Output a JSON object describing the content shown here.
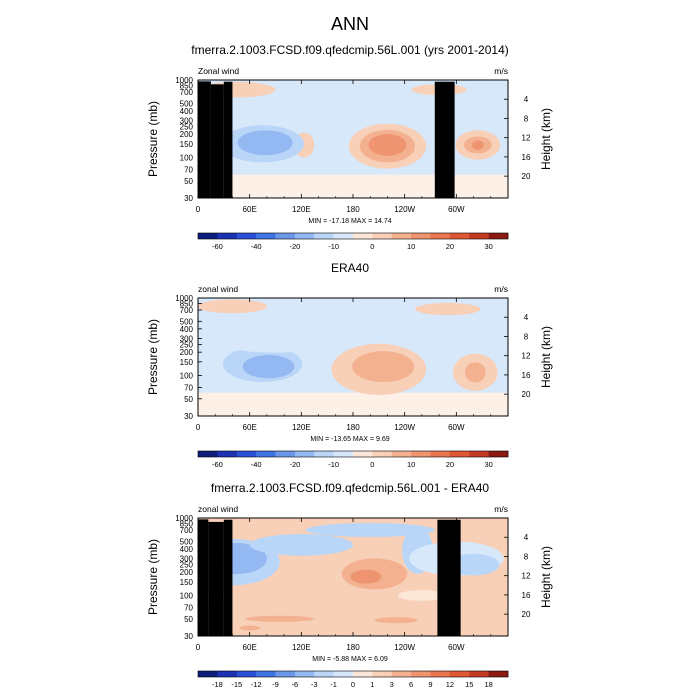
{
  "figure_title": "ANN",
  "colors": {
    "blue_levels": [
      "#0b1e7a",
      "#1b33b0",
      "#2a50d6",
      "#3f74e6",
      "#6c98ea",
      "#93b8f2",
      "#b9d6f8",
      "#d8e8fb"
    ],
    "red_levels": [
      "#fbe6d8",
      "#f8cfb7",
      "#f3b190",
      "#ef9470",
      "#e97551",
      "#df5836",
      "#c43b24",
      "#8b1a12"
    ],
    "neutral": "#fdf1e7",
    "topography": "#000000"
  },
  "chart_data": [
    {
      "type": "contour",
      "title": "fmerra.2.1003.FCSD.f09.qfedcmip.56L.001 (yrs 2001-2014)",
      "left_label": "Zonal wind",
      "right_label": "m/s",
      "ylabel": "Pressure (mb)",
      "y2label": "Height (km)",
      "x_ticks": [
        "0",
        "60E",
        "120E",
        "180",
        "120W",
        "60W"
      ],
      "x_range_deg": [
        0,
        360
      ],
      "p_ticks": [
        30,
        50,
        70,
        100,
        150,
        200,
        250,
        300,
        400,
        500,
        700,
        850,
        1000
      ],
      "p_range": [
        1000,
        30
      ],
      "height_ticks_km": [
        4,
        8,
        12,
        16,
        20
      ],
      "stats": "MIN = -17.18  MAX =  14.74",
      "colorbar_labels": [
        "-60",
        "-40",
        "-20",
        "-10",
        "0",
        "10",
        "20",
        "30"
      ],
      "colorbar_colors": [
        "#0b1e7a",
        "#1b33b0",
        "#2a50d6",
        "#3f74e6",
        "#6c98ea",
        "#93b8f2",
        "#b9d6f8",
        "#d8e8fb",
        "#fbe6d8",
        "#f8cfb7",
        "#f3b190",
        "#ef9470",
        "#e97551",
        "#df5836",
        "#c43b24",
        "#8b1a12"
      ],
      "background": "#fdf1e7",
      "top_band": "#d8e8fb",
      "features": [
        {
          "kind": "blob",
          "lon": 123,
          "p": 145,
          "lon_half_width": 12,
          "p_log_half": 0.16,
          "color": "#f8cfb7",
          "level": 5
        },
        {
          "kind": "blob",
          "lon": 220,
          "p": 140,
          "lon_half_width": 45,
          "p_log_half": 0.29,
          "color": "#f8cfb7",
          "level": 5
        },
        {
          "kind": "blob",
          "lon": 220,
          "p": 140,
          "lon_half_width": 32,
          "p_log_half": 0.21,
          "color": "#f3b190",
          "level": 10
        },
        {
          "kind": "blob",
          "lon": 220,
          "p": 145,
          "lon_half_width": 22,
          "p_log_half": 0.14,
          "color": "#ef9470",
          "level": 12
        },
        {
          "kind": "blob",
          "lon": 325,
          "p": 145,
          "lon_half_width": 26,
          "p_log_half": 0.19,
          "color": "#f8cfb7",
          "level": 5
        },
        {
          "kind": "blob",
          "lon": 325,
          "p": 145,
          "lon_half_width": 16,
          "p_log_half": 0.11,
          "color": "#f3b190",
          "level": 10
        },
        {
          "kind": "blob",
          "lon": 325,
          "p": 145,
          "lon_half_width": 7,
          "p_log_half": 0.06,
          "color": "#ef9470",
          "level": 12
        },
        {
          "kind": "blob",
          "lon": 75,
          "p": 150,
          "lon_half_width": 48,
          "p_log_half": 0.24,
          "color": "#b9d6f8",
          "level": -5
        },
        {
          "kind": "blob",
          "lon": 78,
          "p": 155,
          "lon_half_width": 32,
          "p_log_half": 0.16,
          "color": "#93b8f2",
          "level": -10
        },
        {
          "kind": "blob",
          "lon": 150,
          "p": 260,
          "lon_half_width": 14,
          "p_log_half": 0.2,
          "color": "#d8e8fb",
          "level": -2
        },
        {
          "kind": "blob",
          "lon": 45,
          "p": 750,
          "lon_half_width": 45,
          "p_log_half": 0.1,
          "color": "#f8cfb7",
          "level": 5
        },
        {
          "kind": "blob",
          "lon": 280,
          "p": 750,
          "lon_half_width": 32,
          "p_log_half": 0.07,
          "color": "#f8cfb7",
          "level": 5
        },
        {
          "kind": "blob",
          "lon": 200,
          "p": 900,
          "lon_half_width": 22,
          "p_log_half": 0.05,
          "color": "#d8e8fb",
          "level": -2
        }
      ],
      "topography": [
        {
          "lon_start": 0,
          "lon_end": 15,
          "p_top": 960
        },
        {
          "lon_start": 15,
          "lon_end": 30,
          "p_top": 880
        },
        {
          "lon_start": 30,
          "lon_end": 40,
          "p_top": 950
        },
        {
          "lon_start": 275,
          "lon_end": 298,
          "p_top": 950
        }
      ]
    },
    {
      "type": "contour",
      "title": "ERA40",
      "left_label": "zonal wind",
      "right_label": "m/s",
      "ylabel": "Pressure (mb)",
      "y2label": "Height (km)",
      "x_ticks": [
        "0",
        "60E",
        "120E",
        "180",
        "120W",
        "60W"
      ],
      "x_range_deg": [
        0,
        360
      ],
      "p_ticks": [
        30,
        50,
        70,
        100,
        150,
        200,
        250,
        300,
        400,
        500,
        700,
        850,
        1000
      ],
      "p_range": [
        1000,
        30
      ],
      "height_ticks_km": [
        4,
        8,
        12,
        16,
        20
      ],
      "stats": "MIN = -13.65  MAX =  9.69",
      "colorbar_labels": [
        "-60",
        "-40",
        "-20",
        "-10",
        "0",
        "10",
        "20",
        "30"
      ],
      "colorbar_colors": [
        "#0b1e7a",
        "#1b33b0",
        "#2a50d6",
        "#3f74e6",
        "#6c98ea",
        "#93b8f2",
        "#b9d6f8",
        "#d8e8fb",
        "#fbe6d8",
        "#f8cfb7",
        "#f3b190",
        "#ef9470",
        "#e97551",
        "#df5836",
        "#c43b24",
        "#8b1a12"
      ],
      "background": "#fdf1e7",
      "top_band": "#d8e8fb",
      "features": [
        {
          "kind": "blob",
          "lon": 210,
          "p": 120,
          "lon_half_width": 55,
          "p_log_half": 0.33,
          "color": "#f8cfb7",
          "level": 5
        },
        {
          "kind": "blob",
          "lon": 215,
          "p": 130,
          "lon_half_width": 36,
          "p_log_half": 0.2,
          "color": "#f3b190",
          "level": 10
        },
        {
          "kind": "blob",
          "lon": 322,
          "p": 110,
          "lon_half_width": 26,
          "p_log_half": 0.24,
          "color": "#f8cfb7",
          "level": 5
        },
        {
          "kind": "blob",
          "lon": 322,
          "p": 110,
          "lon_half_width": 12,
          "p_log_half": 0.13,
          "color": "#f3b190",
          "level": 10
        },
        {
          "kind": "blob",
          "lon": 75,
          "p": 130,
          "lon_half_width": 70,
          "p_log_half": 0.32,
          "color": "#d8e8fb",
          "level": -2
        },
        {
          "kind": "blob",
          "lon": 75,
          "p": 140,
          "lon_half_width": 46,
          "p_log_half": 0.23,
          "color": "#b9d6f8",
          "level": -5
        },
        {
          "kind": "blob",
          "lon": 82,
          "p": 130,
          "lon_half_width": 30,
          "p_log_half": 0.15,
          "color": "#93b8f2",
          "level": -10
        },
        {
          "kind": "blob",
          "lon": 90,
          "p": 260,
          "lon_half_width": 65,
          "p_log_half": 0.12,
          "color": "#d8e8fb",
          "level": -2
        },
        {
          "kind": "blob",
          "lon": 40,
          "p": 780,
          "lon_half_width": 40,
          "p_log_half": 0.09,
          "color": "#f8cfb7",
          "level": 5
        },
        {
          "kind": "blob",
          "lon": 290,
          "p": 720,
          "lon_half_width": 38,
          "p_log_half": 0.08,
          "color": "#f8cfb7",
          "level": 5
        },
        {
          "kind": "blob",
          "lon": 180,
          "p": 880,
          "lon_half_width": 30,
          "p_log_half": 0.05,
          "color": "#d8e8fb",
          "level": -2
        }
      ],
      "topography": []
    },
    {
      "type": "contour",
      "title": "fmerra.2.1003.FCSD.f09.qfedcmip.56L.001 - ERA40",
      "left_label": "zonal wind",
      "right_label": "m/s",
      "ylabel": "Pressure (mb)",
      "y2label": "Height (km)",
      "x_ticks": [
        "0",
        "60E",
        "120E",
        "180",
        "120W",
        "60W"
      ],
      "x_range_deg": [
        0,
        360
      ],
      "p_ticks": [
        30,
        50,
        70,
        100,
        150,
        200,
        250,
        300,
        400,
        500,
        700,
        850,
        1000
      ],
      "p_range": [
        1000,
        30
      ],
      "height_ticks_km": [
        4,
        8,
        12,
        16,
        20
      ],
      "stats": "MIN = -5.88  MAX =  6.09",
      "colorbar_labels": [
        "-18",
        "-15",
        "-12",
        "-9",
        "-6",
        "-3",
        "-1",
        "0",
        "1",
        "3",
        "6",
        "9",
        "12",
        "15",
        "18"
      ],
      "colorbar_colors": [
        "#0b1e7a",
        "#1b33b0",
        "#2a50d6",
        "#3f74e6",
        "#6c98ea",
        "#93b8f2",
        "#b9d6f8",
        "#d8e8fb",
        "#fbe6d8",
        "#f8cfb7",
        "#f3b190",
        "#ef9470",
        "#e97551",
        "#df5836",
        "#c43b24",
        "#8b1a12"
      ],
      "background": "#f8cfb7",
      "top_band": "",
      "features": [
        {
          "kind": "blob",
          "lon": 40,
          "p": 270,
          "lon_half_width": 55,
          "p_log_half": 0.3,
          "color": "#b9d6f8",
          "level": -2
        },
        {
          "kind": "blob",
          "lon": 45,
          "p": 300,
          "lon_half_width": 35,
          "p_log_half": 0.2,
          "color": "#93b8f2",
          "level": -3
        },
        {
          "kind": "blob",
          "lon": 120,
          "p": 450,
          "lon_half_width": 60,
          "p_log_half": 0.14,
          "color": "#b9d6f8",
          "level": -2
        },
        {
          "kind": "blob",
          "lon": 255,
          "p": 380,
          "lon_half_width": 18,
          "p_log_half": 0.3,
          "color": "#b9d6f8",
          "level": -2
        },
        {
          "kind": "blob",
          "lon": 300,
          "p": 300,
          "lon_half_width": 55,
          "p_log_half": 0.22,
          "color": "#d8e8fb",
          "level": -1
        },
        {
          "kind": "blob",
          "lon": 320,
          "p": 250,
          "lon_half_width": 30,
          "p_log_half": 0.14,
          "color": "#b9d6f8",
          "level": -2
        },
        {
          "kind": "blob",
          "lon": 200,
          "p": 700,
          "lon_half_width": 75,
          "p_log_half": 0.09,
          "color": "#b9d6f8",
          "level": -2
        },
        {
          "kind": "blob",
          "lon": 205,
          "p": 190,
          "lon_half_width": 38,
          "p_log_half": 0.2,
          "color": "#f3b190",
          "level": 3
        },
        {
          "kind": "blob",
          "lon": 195,
          "p": 175,
          "lon_half_width": 18,
          "p_log_half": 0.09,
          "color": "#ef9470",
          "level": 6
        },
        {
          "kind": "blob",
          "lon": 95,
          "p": 50,
          "lon_half_width": 40,
          "p_log_half": 0.04,
          "color": "#f3b190",
          "level": 3
        },
        {
          "kind": "blob",
          "lon": 230,
          "p": 48,
          "lon_half_width": 25,
          "p_log_half": 0.04,
          "color": "#f3b190",
          "level": 3
        },
        {
          "kind": "blob",
          "lon": 60,
          "p": 38,
          "lon_half_width": 12,
          "p_log_half": 0.03,
          "color": "#f3b190",
          "level": 3
        },
        {
          "kind": "blob",
          "lon": 260,
          "p": 100,
          "lon_half_width": 28,
          "p_log_half": 0.07,
          "color": "#fbe6d8",
          "level": 0.5
        },
        {
          "kind": "blob",
          "lon": 15,
          "p": 95,
          "lon_half_width": 20,
          "p_log_half": 0.08,
          "color": "#fbe6d8",
          "level": 0.5
        },
        {
          "kind": "blob",
          "lon": 100,
          "p": 820,
          "lon_half_width": 35,
          "p_log_half": 0.07,
          "color": "#f8cfb7",
          "level": 1
        }
      ],
      "topography": [
        {
          "lon_start": 0,
          "lon_end": 12,
          "p_top": 960
        },
        {
          "lon_start": 12,
          "lon_end": 30,
          "p_top": 890
        },
        {
          "lon_start": 30,
          "lon_end": 40,
          "p_top": 950
        },
        {
          "lon_start": 278,
          "lon_end": 305,
          "p_top": 950
        }
      ]
    }
  ]
}
